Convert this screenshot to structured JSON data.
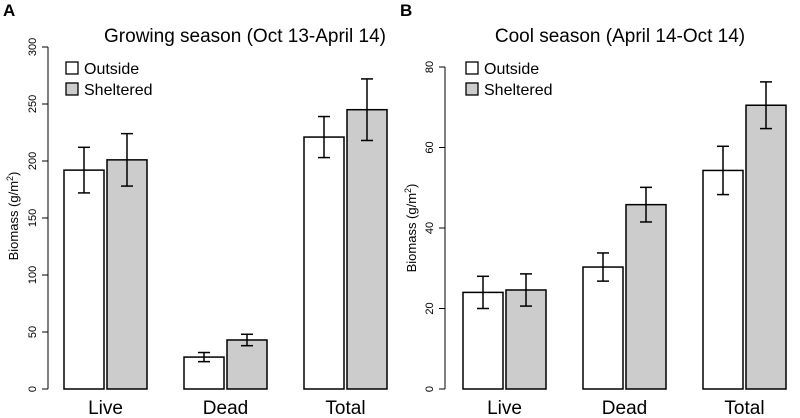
{
  "chart_data": [
    {
      "panel": "A",
      "type": "bar",
      "title": "Growing season (Oct 13-April 14)",
      "ylabel": "Biomass (g/m",
      "ylabel_sup": "2",
      "ylabel_close": ")",
      "xlabel": "",
      "categories": [
        "Live",
        "Dead",
        "Total"
      ],
      "ylim": [
        0,
        300
      ],
      "yticks": [
        0,
        50,
        100,
        150,
        200,
        250,
        300
      ],
      "series": [
        {
          "name": "Outside",
          "color": "#ffffff",
          "values": [
            192,
            28,
            221
          ],
          "errors": [
            20,
            4,
            18
          ]
        },
        {
          "name": "Sheltered",
          "color": "#cccccc",
          "values": [
            201,
            43,
            245
          ],
          "errors": [
            23,
            5,
            27
          ]
        }
      ],
      "legend": "top-left",
      "grid": false
    },
    {
      "panel": "B",
      "type": "bar",
      "title": "Cool season (April 14-Oct 14)",
      "ylabel": "Biomass (g/m",
      "ylabel_sup": "2",
      "ylabel_close": ")",
      "xlabel": "",
      "categories": [
        "Live",
        "Dead",
        "Total"
      ],
      "ylim": [
        0,
        80
      ],
      "yticks": [
        0,
        20,
        40,
        60,
        80
      ],
      "series": [
        {
          "name": "Outside",
          "color": "#ffffff",
          "values": [
            24,
            30.3,
            54.3
          ],
          "errors": [
            4,
            3.5,
            6
          ]
        },
        {
          "name": "Sheltered",
          "color": "#cccccc",
          "values": [
            24.6,
            45.8,
            70.5
          ],
          "errors": [
            4,
            4.3,
            5.8
          ]
        }
      ],
      "legend": "top-left",
      "grid": false
    }
  ]
}
